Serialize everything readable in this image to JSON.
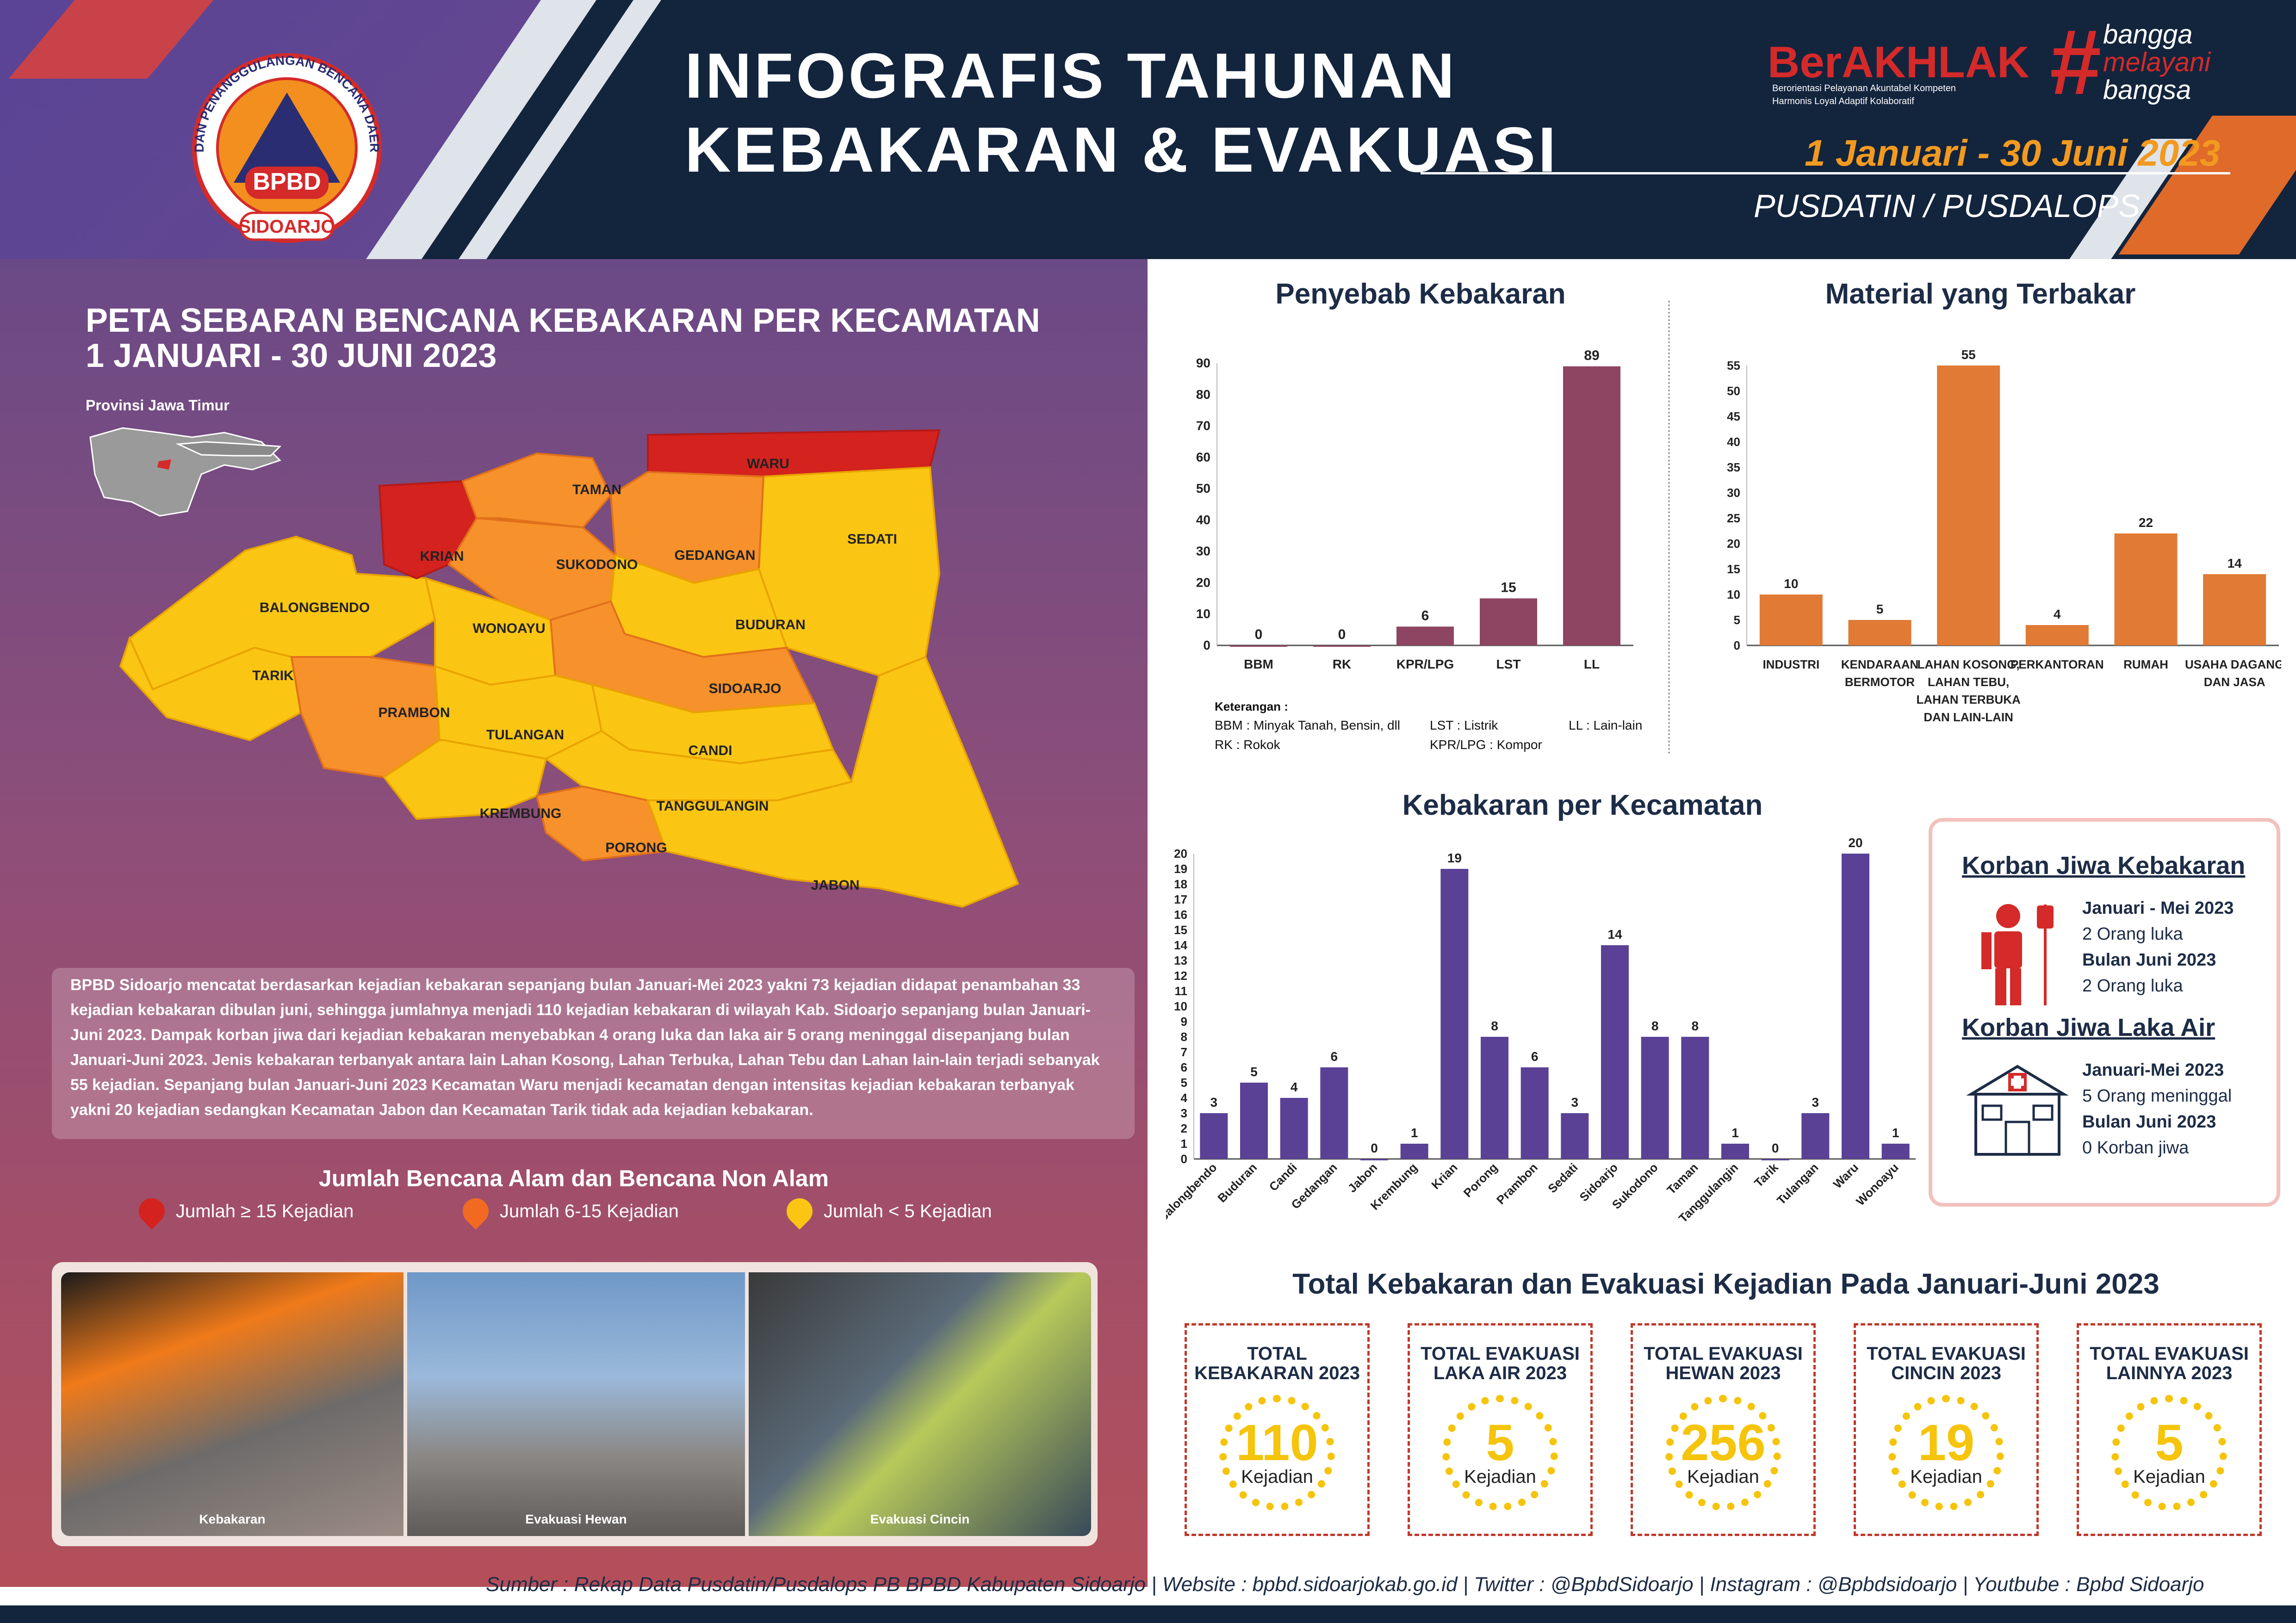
{
  "header": {
    "title_line1": "INFOGRAFIS TAHUNAN",
    "title_line2": "KEBAKARAN & EVAKUASI",
    "date_range": "1 Januari - 30 Juni 2023",
    "unit": "PUSDATIN / PUSDALOPS",
    "logo_outer_text": "BADAN PENANGGULANGAN BENCANA DAERAH",
    "logo_center": "BPBD",
    "logo_bottom": "SIDOARJO",
    "brand_ber": "BerAKHLAK",
    "brand_ber_sub1": "Berorientasi Pelayanan Akuntabel Kompeten",
    "brand_ber_sub2": "Harmonis Loyal Adaptif Kolaboratif",
    "brand_hash": "#",
    "brand_bangga_1": "bangga",
    "brand_bangga_2": "melayani",
    "brand_bangga_3": "bangsa"
  },
  "map": {
    "title_line1": "PETA SEBARAN BENCANA KEBAKARAN PER KECAMATAN",
    "title_line2": "1 JANUARI - 30 JUNI 2023",
    "inset_label": "Provinsi Jawa Timur",
    "districts": {
      "waru": "WARU",
      "taman": "TAMAN",
      "sedati": "SEDATI",
      "krian": "KRIAN",
      "sukodono": "SUKODONO",
      "gedangan": "GEDANGAN",
      "balongbendo": "BALONGBENDO",
      "wonoayu": "WONOAYU",
      "buduran": "BUDURAN",
      "tarik": "TARIK",
      "prambon": "PRAMBON",
      "sidoarjo": "SIDOARJO",
      "tulangan": "TULANGAN",
      "candi": "CANDI",
      "krembung": "KREMBUNG",
      "tanggulangin": "TANGGULANGIN",
      "porong": "PORONG",
      "jabon": "JABON"
    },
    "colors": {
      "high": "#d4221f",
      "mid": "#f7912b",
      "low": "#fbc613"
    }
  },
  "narrative": "BPBD Sidoarjo mencatat berdasarkan kejadian kebakaran sepanjang bulan Januari-Mei 2023 yakni 73 kejadian didapat penambahan 33 kejadian kebakaran dibulan juni, sehingga jumlahnya menjadi 110 kejadian kebakaran di wilayah Kab. Sidoarjo sepanjang bulan Januari-Juni 2023. Dampak korban jiwa dari kejadian kebakaran menyebabkan 4 orang luka dan laka air 5 orang meninggal disepanjang bulan Januari-Juni 2023. Jenis kebakaran terbanyak antara lain Lahan Kosong, Lahan Terbuka, Lahan Tebu dan Lahan lain-lain terjadi sebanyak 55 kejadian. Sepanjang bulan Januari-Juni 2023 Kecamatan Waru menjadi kecamatan dengan intensitas kejadian kebakaran terbanyak yakni 20 kejadian sedangkan Kecamatan Jabon dan Kecamatan Tarik tidak ada kejadian kebakaran.",
  "legend": {
    "title": "Jumlah Bencana Alam dan Bencana Non Alam",
    "items": [
      "Jumlah ≥ 15 Kejadian",
      "Jumlah 6-15 Kejadian",
      "Jumlah < 5 Kejadian"
    ]
  },
  "photos": [
    "Kebakaran",
    "Evakuasi Hewan",
    "Evakuasi Cincin"
  ],
  "chart_data": [
    {
      "type": "bar",
      "title": "Penyebab Kebakaran",
      "categories": [
        "BBM",
        "RK",
        "KPR/LPG",
        "LST",
        "LL"
      ],
      "values": [
        0,
        0,
        6,
        15,
        89
      ],
      "ylim": [
        0,
        90
      ],
      "yticks": [
        0,
        10,
        20,
        30,
        40,
        50,
        60,
        70,
        80,
        90
      ],
      "color": "#8e4561",
      "notes_title": "Keterangan :",
      "notes": [
        "BBM : Minyak Tanah, Bensin, dll",
        "RK   : Rokok",
        "LST        : Listrik",
        "KPR/LPG : Kompor",
        "LL  : Lain-lain"
      ]
    },
    {
      "type": "bar",
      "title": "Material yang Terbakar",
      "categories": [
        "INDUSTRI",
        "KENDARAAN BERMOTOR",
        "LAHAN KOSONG, LAHAN TEBU, LAHAN TERBUKA DAN LAIN-LAIN",
        "PERKANTORAN",
        "RUMAH",
        "USAHA DAGANG DAN JASA"
      ],
      "values": [
        10,
        5,
        55,
        4,
        22,
        14
      ],
      "ylim": [
        0,
        55
      ],
      "yticks": [
        0,
        5,
        10,
        15,
        20,
        25,
        30,
        35,
        40,
        45,
        50,
        55
      ],
      "color": "#e07a35"
    },
    {
      "type": "bar",
      "title": "Kebakaran per Kecamatan",
      "categories": [
        "Balongbendo",
        "Buduran",
        "Candi",
        "Gedangan",
        "Jabon",
        "Krembung",
        "Krian",
        "Porong",
        "Prambon",
        "Sedati",
        "Sidoarjo",
        "Sukodono",
        "Taman",
        "Tanggulangin",
        "Tarik",
        "Tulangan",
        "Waru",
        "Wonoayu"
      ],
      "values": [
        3,
        5,
        4,
        6,
        0,
        1,
        19,
        8,
        6,
        3,
        14,
        8,
        8,
        1,
        0,
        3,
        20,
        1
      ],
      "ylim": [
        0,
        20
      ],
      "yticks": [
        0,
        1,
        2,
        3,
        4,
        5,
        6,
        7,
        8,
        9,
        10,
        11,
        12,
        13,
        14,
        15,
        16,
        17,
        18,
        19,
        20
      ],
      "color": "#5a4196"
    }
  ],
  "casualties": {
    "fire_title": "Korban Jiwa Kebakaran",
    "fire_lines": [
      "Januari - Mei 2023",
      "2 Orang luka",
      "Bulan Juni 2023",
      "2 Orang luka"
    ],
    "water_title": "Korban Jiwa Laka Air",
    "water_lines": [
      "Januari-Mei 2023",
      "5 Orang meninggal",
      "Bulan Juni 2023",
      "0 Korban jiwa"
    ]
  },
  "totals": {
    "title": "Total Kebakaran dan Evakuasi Kejadian Pada Januari-Juni 2023",
    "unit": "Kejadian",
    "items": [
      {
        "l1": "TOTAL",
        "l2": "KEBAKARAN 2023",
        "value": "110"
      },
      {
        "l1": "TOTAL EVAKUASI",
        "l2": "LAKA AIR 2023",
        "value": "5"
      },
      {
        "l1": "TOTAL EVAKUASI",
        "l2": "HEWAN 2023",
        "value": "256"
      },
      {
        "l1": "TOTAL EVAKUASI",
        "l2": "CINCIN 2023",
        "value": "19"
      },
      {
        "l1": "TOTAL EVAKUASI",
        "l2": "LAINNYA 2023",
        "value": "5"
      }
    ]
  },
  "footer": "Sumber : Rekap Data Pusdatin/Pusdalops PB BPBD Kabupaten Sidoarjo | Website : bpbd.sidoarjokab.go.id | Twitter : @BpbdSidoarjo | Instagram : @Bpbdsidoarjo | Youtbube : Bpbd Sidoarjo"
}
